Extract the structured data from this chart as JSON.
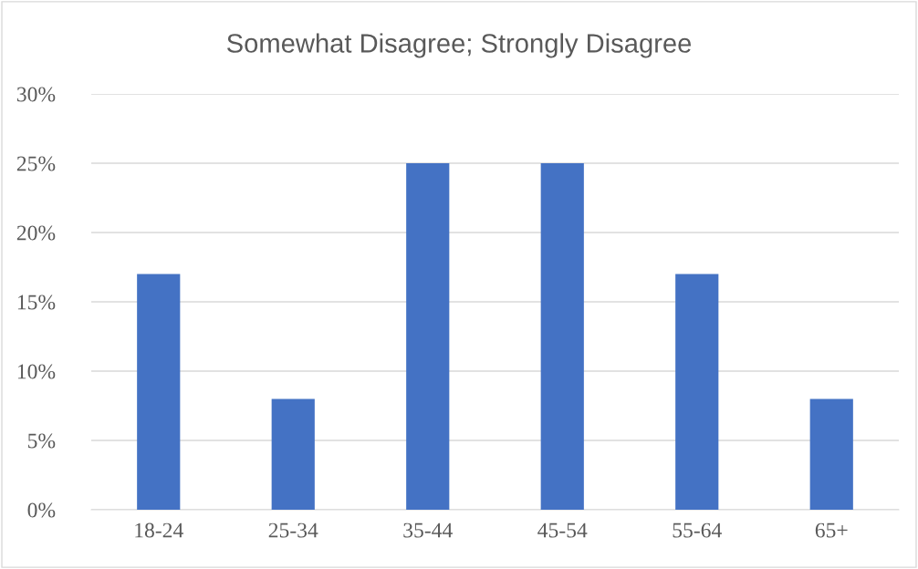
{
  "chart_data": {
    "type": "bar",
    "title": "Somewhat Disagree; Strongly Disagree",
    "categories": [
      "18-24",
      "25-34",
      "35-44",
      "45-54",
      "55-64",
      "65+"
    ],
    "values": [
      17,
      8,
      25,
      25,
      17,
      8
    ],
    "color": "#4472c4",
    "ylim": [
      0,
      30
    ],
    "yticks": [
      {
        "value": 0,
        "label": "0%"
      },
      {
        "value": 5,
        "label": "5%"
      },
      {
        "value": 10,
        "label": "10%"
      },
      {
        "value": 15,
        "label": "15%"
      },
      {
        "value": 20,
        "label": "20%"
      },
      {
        "value": 25,
        "label": "25%"
      },
      {
        "value": 30,
        "label": "30%"
      }
    ],
    "grid": "y",
    "legend": false
  }
}
